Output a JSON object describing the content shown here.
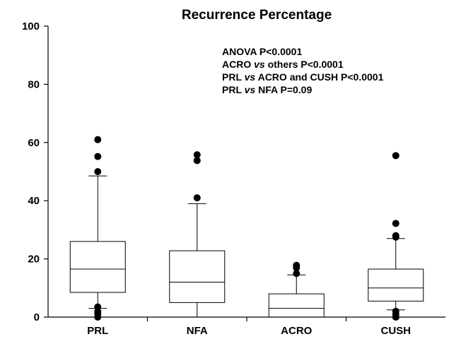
{
  "chart_data": {
    "type": "box",
    "title": "Recurrence Percentage",
    "xlabel": "",
    "ylabel": "",
    "ylim": [
      0,
      100
    ],
    "yticks": [
      0,
      20,
      40,
      60,
      80,
      100
    ],
    "grid": false,
    "categories": [
      "PRL",
      "NFA",
      "ACRO",
      "CUSH"
    ],
    "boxes": [
      {
        "name": "PRL",
        "whisker_low": 3,
        "q1": 8.5,
        "median": 16.5,
        "q3": 26,
        "whisker_high": 48.5,
        "outliers": [
          61,
          55.2,
          50,
          3.5,
          2,
          1.2,
          0
        ]
      },
      {
        "name": "NFA",
        "whisker_low": 0,
        "q1": 5,
        "median": 12,
        "q3": 22.8,
        "whisker_high": 39,
        "outliers": [
          55.8,
          53.8,
          41
        ]
      },
      {
        "name": "ACRO",
        "whisker_low": 0,
        "q1": 0,
        "median": 3,
        "q3": 8,
        "whisker_high": 14.5,
        "outliers": [
          17.8,
          17,
          15
        ]
      },
      {
        "name": "CUSH",
        "whisker_low": 2.5,
        "q1": 5.5,
        "median": 10,
        "q3": 16.5,
        "whisker_high": 27,
        "outliers": [
          55.5,
          32.2,
          28,
          27.5,
          2,
          1,
          0
        ]
      }
    ],
    "annotations": [
      [
        {
          "text": "ANOVA P<0.0001",
          "italic": false
        }
      ],
      [
        {
          "text": "ACRO ",
          "italic": false
        },
        {
          "text": "vs",
          "italic": true
        },
        {
          "text": " others P<0.0001",
          "italic": false
        }
      ],
      [
        {
          "text": "PRL ",
          "italic": false
        },
        {
          "text": "vs",
          "italic": true
        },
        {
          "text": " ACRO and CUSH P<0.0001",
          "italic": false
        }
      ],
      [
        {
          "text": "PRL ",
          "italic": false
        },
        {
          "text": "vs",
          "italic": true
        },
        {
          "text": " NFA P=0.09",
          "italic": false
        }
      ]
    ]
  }
}
